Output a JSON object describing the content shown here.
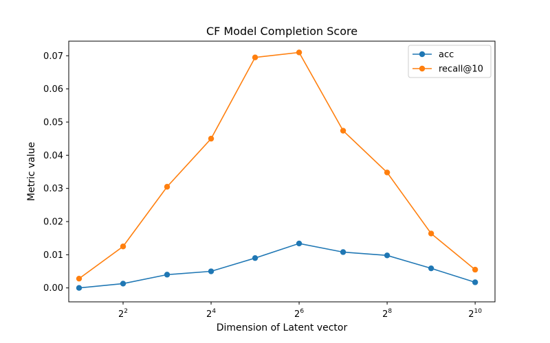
{
  "chart_data": {
    "type": "line",
    "title": "CF Model Completion Score",
    "xlabel": "Dimension of Latent vector",
    "ylabel": "Metric value",
    "x_scale": "log2",
    "x": [
      2,
      4,
      8,
      16,
      32,
      64,
      128,
      256,
      512,
      1024
    ],
    "xlim": [
      1.7,
      1400
    ],
    "ylim": [
      -0.0042,
      0.0744
    ],
    "x_ticks": [
      {
        "value": 4,
        "base": "2",
        "exp": "2"
      },
      {
        "value": 16,
        "base": "2",
        "exp": "4"
      },
      {
        "value": 64,
        "base": "2",
        "exp": "6"
      },
      {
        "value": 256,
        "base": "2",
        "exp": "8"
      },
      {
        "value": 1024,
        "base": "2",
        "exp": "10"
      }
    ],
    "y_ticks": [
      {
        "value": 0.0,
        "label": "0.00"
      },
      {
        "value": 0.01,
        "label": "0.01"
      },
      {
        "value": 0.02,
        "label": "0.02"
      },
      {
        "value": 0.03,
        "label": "0.03"
      },
      {
        "value": 0.04,
        "label": "0.04"
      },
      {
        "value": 0.05,
        "label": "0.05"
      },
      {
        "value": 0.06,
        "label": "0.06"
      },
      {
        "value": 0.07,
        "label": "0.07"
      }
    ],
    "series": [
      {
        "name": "acc",
        "color": "#1f77b4",
        "values": [
          0.0,
          0.0013,
          0.004,
          0.005,
          0.009,
          0.0134,
          0.0108,
          0.0098,
          0.0059,
          0.0017
        ]
      },
      {
        "name": "recall@10",
        "color": "#ff7f0e",
        "values": [
          0.0028,
          0.0125,
          0.0305,
          0.045,
          0.0695,
          0.071,
          0.0474,
          0.0348,
          0.0164,
          0.0055
        ]
      }
    ],
    "grid": false,
    "legend": "upper right"
  }
}
